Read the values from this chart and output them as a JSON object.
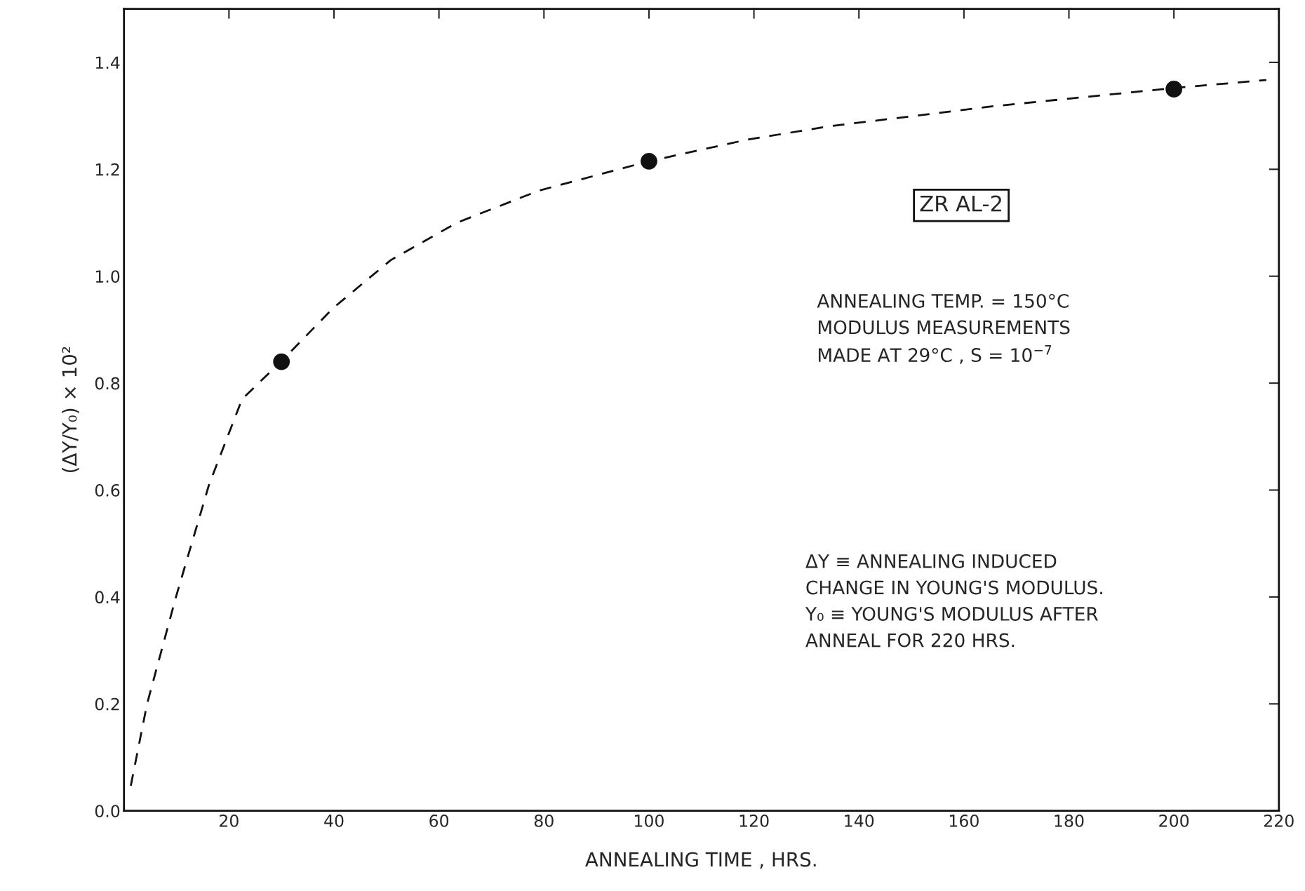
{
  "chart_data": {
    "type": "scatter",
    "xlabel": "ANNEALING TIME , HRS.",
    "ylabel": "(ΔY/Y₀) × 10²",
    "xlim": [
      0,
      220
    ],
    "ylim": [
      0,
      1.5
    ],
    "xticks": [
      20,
      40,
      60,
      80,
      100,
      120,
      140,
      160,
      180,
      200,
      220
    ],
    "yticks": [
      {
        "value": 0,
        "label": "0.0"
      },
      0.2,
      0.4,
      0.6,
      0.8,
      {
        "value": 1,
        "label": "1.0"
      },
      1.2,
      1.4
    ],
    "grid": false,
    "legend": false,
    "series": [
      {
        "type": "scatter",
        "color": "#111111",
        "marker": "circle",
        "x": [
          30,
          100,
          200
        ],
        "values": [
          0.84,
          1.215,
          1.35
        ]
      },
      {
        "type": "line",
        "color": "#111111",
        "line_style": "dashed",
        "marker": "none",
        "x": [
          1.3,
          4.4,
          9.9,
          16.2,
          22.5,
          30.4,
          39.8,
          50.8,
          63.4,
          79,
          100,
          118.5,
          134,
          165.7,
          200,
          217.6
        ],
        "values": [
          0.047,
          0.2,
          0.4,
          0.61,
          0.77,
          0.845,
          0.94,
          1.03,
          1.1,
          1.16,
          1.215,
          1.255,
          1.28,
          1.318,
          1.352,
          1.367
        ]
      }
    ],
    "annotations": [
      "ZR AL-2",
      "ANNEALING TEMP. = 150°C\nMODULUS MEASUREMENTS\nMADE AT 29°C , S = 10$^{−7}$",
      "ΔY ≡ ANNEALING INDUCED\nCHANGE IN YOUNG'S MODULUS.\nY₀ ≡ YOUNG'S MODULUS AFTER\nANNEAL FOR 220 HRS."
    ]
  }
}
